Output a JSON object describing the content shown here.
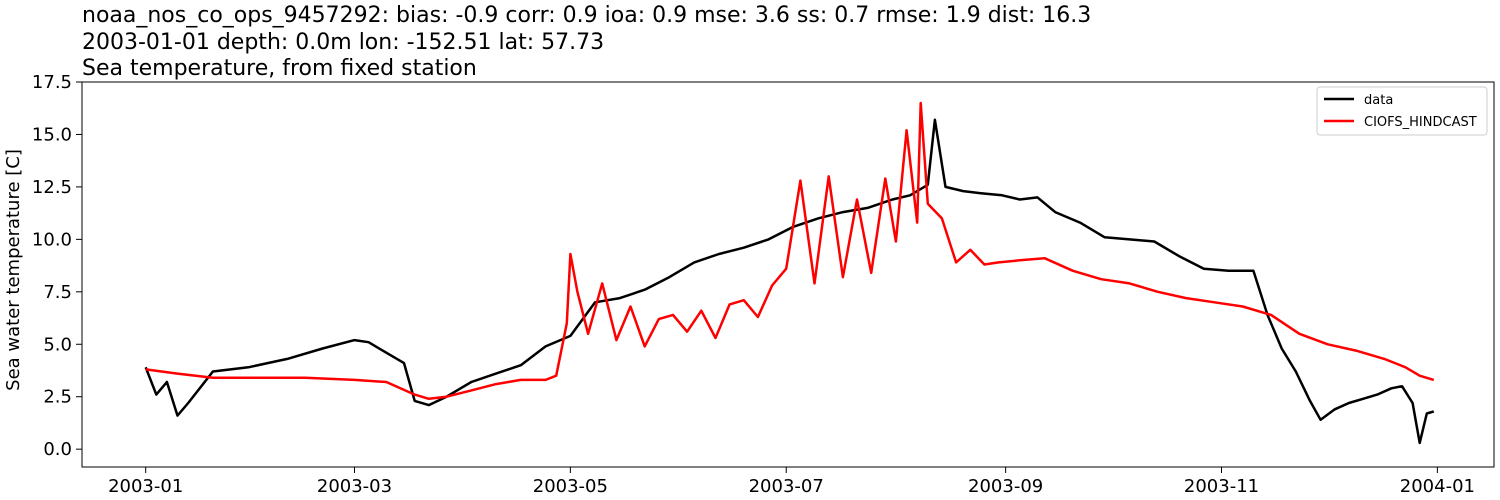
{
  "chart_data": {
    "type": "line",
    "title_lines": [
      "noaa_nos_co_ops_9457292: bias: -0.9  corr: 0.9  ioa: 0.9  mse: 3.6  ss: 0.7  rmse: 1.9  dist: 16.3",
      "2003-01-01 depth: 0.0m lon: -152.51 lat: 57.73",
      "Sea temperature, from fixed station"
    ],
    "xlabel": "",
    "ylabel": "Sea water temperature [C]",
    "xlim": [
      "2002-12-14",
      "2004-01-17"
    ],
    "ylim": [
      -0.85,
      17.5
    ],
    "x_ticks": [
      "2003-01",
      "2003-03",
      "2003-05",
      "2003-07",
      "2003-09",
      "2003-11",
      "2004-01"
    ],
    "y_ticks": [
      "0.0",
      "2.5",
      "5.0",
      "7.5",
      "10.0",
      "12.5",
      "15.0",
      "17.5"
    ],
    "grid": false,
    "legend_position": "top-right",
    "series": [
      {
        "name": "data",
        "color": "#000000",
        "x": [
          "2003-01-01",
          "2003-01-04",
          "2003-01-07",
          "2003-01-10",
          "2003-01-13",
          "2003-01-20",
          "2003-01-30",
          "2003-02-10",
          "2003-02-20",
          "2003-03-01",
          "2003-03-05",
          "2003-03-10",
          "2003-03-15",
          "2003-03-18",
          "2003-03-22",
          "2003-03-27",
          "2003-04-03",
          "2003-04-10",
          "2003-04-17",
          "2003-04-24",
          "2003-05-01",
          "2003-05-08",
          "2003-05-15",
          "2003-05-22",
          "2003-05-29",
          "2003-06-05",
          "2003-06-12",
          "2003-06-19",
          "2003-06-26",
          "2003-07-03",
          "2003-07-10",
          "2003-07-17",
          "2003-07-24",
          "2003-07-31",
          "2003-08-05",
          "2003-08-10",
          "2003-08-12",
          "2003-08-15",
          "2003-08-20",
          "2003-08-25",
          "2003-08-31",
          "2003-09-05",
          "2003-09-10",
          "2003-09-15",
          "2003-09-22",
          "2003-09-29",
          "2003-10-06",
          "2003-10-13",
          "2003-10-20",
          "2003-10-27",
          "2003-11-03",
          "2003-11-10",
          "2003-11-14",
          "2003-11-18",
          "2003-11-22",
          "2003-11-26",
          "2003-11-29",
          "2003-12-03",
          "2003-12-07",
          "2003-12-11",
          "2003-12-15",
          "2003-12-19",
          "2003-12-22",
          "2003-12-25",
          "2003-12-27",
          "2003-12-29",
          "2003-12-31"
        ],
        "y": [
          3.9,
          2.6,
          3.2,
          1.6,
          2.2,
          3.7,
          3.9,
          4.3,
          4.8,
          5.2,
          5.1,
          4.6,
          4.1,
          2.3,
          2.1,
          2.5,
          3.2,
          3.6,
          4.0,
          4.9,
          5.4,
          7.0,
          7.2,
          7.6,
          8.2,
          8.9,
          9.3,
          9.6,
          10.0,
          10.6,
          11.0,
          11.3,
          11.5,
          11.9,
          12.1,
          12.6,
          15.7,
          12.5,
          12.3,
          12.2,
          12.1,
          11.9,
          12.0,
          11.3,
          10.8,
          10.1,
          10.0,
          9.9,
          9.2,
          8.6,
          8.5,
          8.5,
          6.4,
          4.8,
          3.7,
          2.3,
          1.4,
          1.9,
          2.2,
          2.4,
          2.6,
          2.9,
          3.0,
          2.2,
          0.3,
          1.7,
          1.8
        ]
      },
      {
        "name": "CIOFS_HINDCAST",
        "color": "#ff0000",
        "x": [
          "2003-01-01",
          "2003-01-10",
          "2003-01-20",
          "2003-02-01",
          "2003-02-15",
          "2003-03-01",
          "2003-03-10",
          "2003-03-18",
          "2003-03-22",
          "2003-03-27",
          "2003-04-03",
          "2003-04-10",
          "2003-04-17",
          "2003-04-24",
          "2003-04-27",
          "2003-04-30",
          "2003-05-01",
          "2003-05-03",
          "2003-05-06",
          "2003-05-10",
          "2003-05-14",
          "2003-05-18",
          "2003-05-22",
          "2003-05-26",
          "2003-05-30",
          "2003-06-03",
          "2003-06-07",
          "2003-06-11",
          "2003-06-15",
          "2003-06-19",
          "2003-06-23",
          "2003-06-27",
          "2003-07-01",
          "2003-07-05",
          "2003-07-09",
          "2003-07-13",
          "2003-07-17",
          "2003-07-21",
          "2003-07-25",
          "2003-07-29",
          "2003-08-01",
          "2003-08-04",
          "2003-08-07",
          "2003-08-08",
          "2003-08-10",
          "2003-08-14",
          "2003-08-18",
          "2003-08-22",
          "2003-08-26",
          "2003-08-30",
          "2003-09-05",
          "2003-09-12",
          "2003-09-20",
          "2003-09-28",
          "2003-10-06",
          "2003-10-14",
          "2003-10-22",
          "2003-10-30",
          "2003-11-07",
          "2003-11-15",
          "2003-11-23",
          "2003-12-01",
          "2003-12-09",
          "2003-12-17",
          "2003-12-23",
          "2003-12-27",
          "2003-12-31"
        ],
        "y": [
          3.8,
          3.6,
          3.4,
          3.4,
          3.4,
          3.3,
          3.2,
          2.6,
          2.4,
          2.5,
          2.8,
          3.1,
          3.3,
          3.3,
          3.5,
          6.0,
          9.3,
          7.5,
          5.5,
          7.9,
          5.2,
          6.8,
          4.9,
          6.2,
          6.4,
          5.6,
          6.6,
          5.3,
          6.9,
          7.1,
          6.3,
          7.8,
          8.6,
          12.8,
          7.9,
          13.0,
          8.2,
          11.9,
          8.4,
          12.9,
          9.9,
          15.2,
          10.8,
          16.5,
          11.7,
          11.0,
          8.9,
          9.5,
          8.8,
          8.9,
          9.0,
          9.1,
          8.5,
          8.1,
          7.9,
          7.5,
          7.2,
          7.0,
          6.8,
          6.4,
          5.5,
          5.0,
          4.7,
          4.3,
          3.9,
          3.5,
          3.3
        ]
      }
    ]
  }
}
